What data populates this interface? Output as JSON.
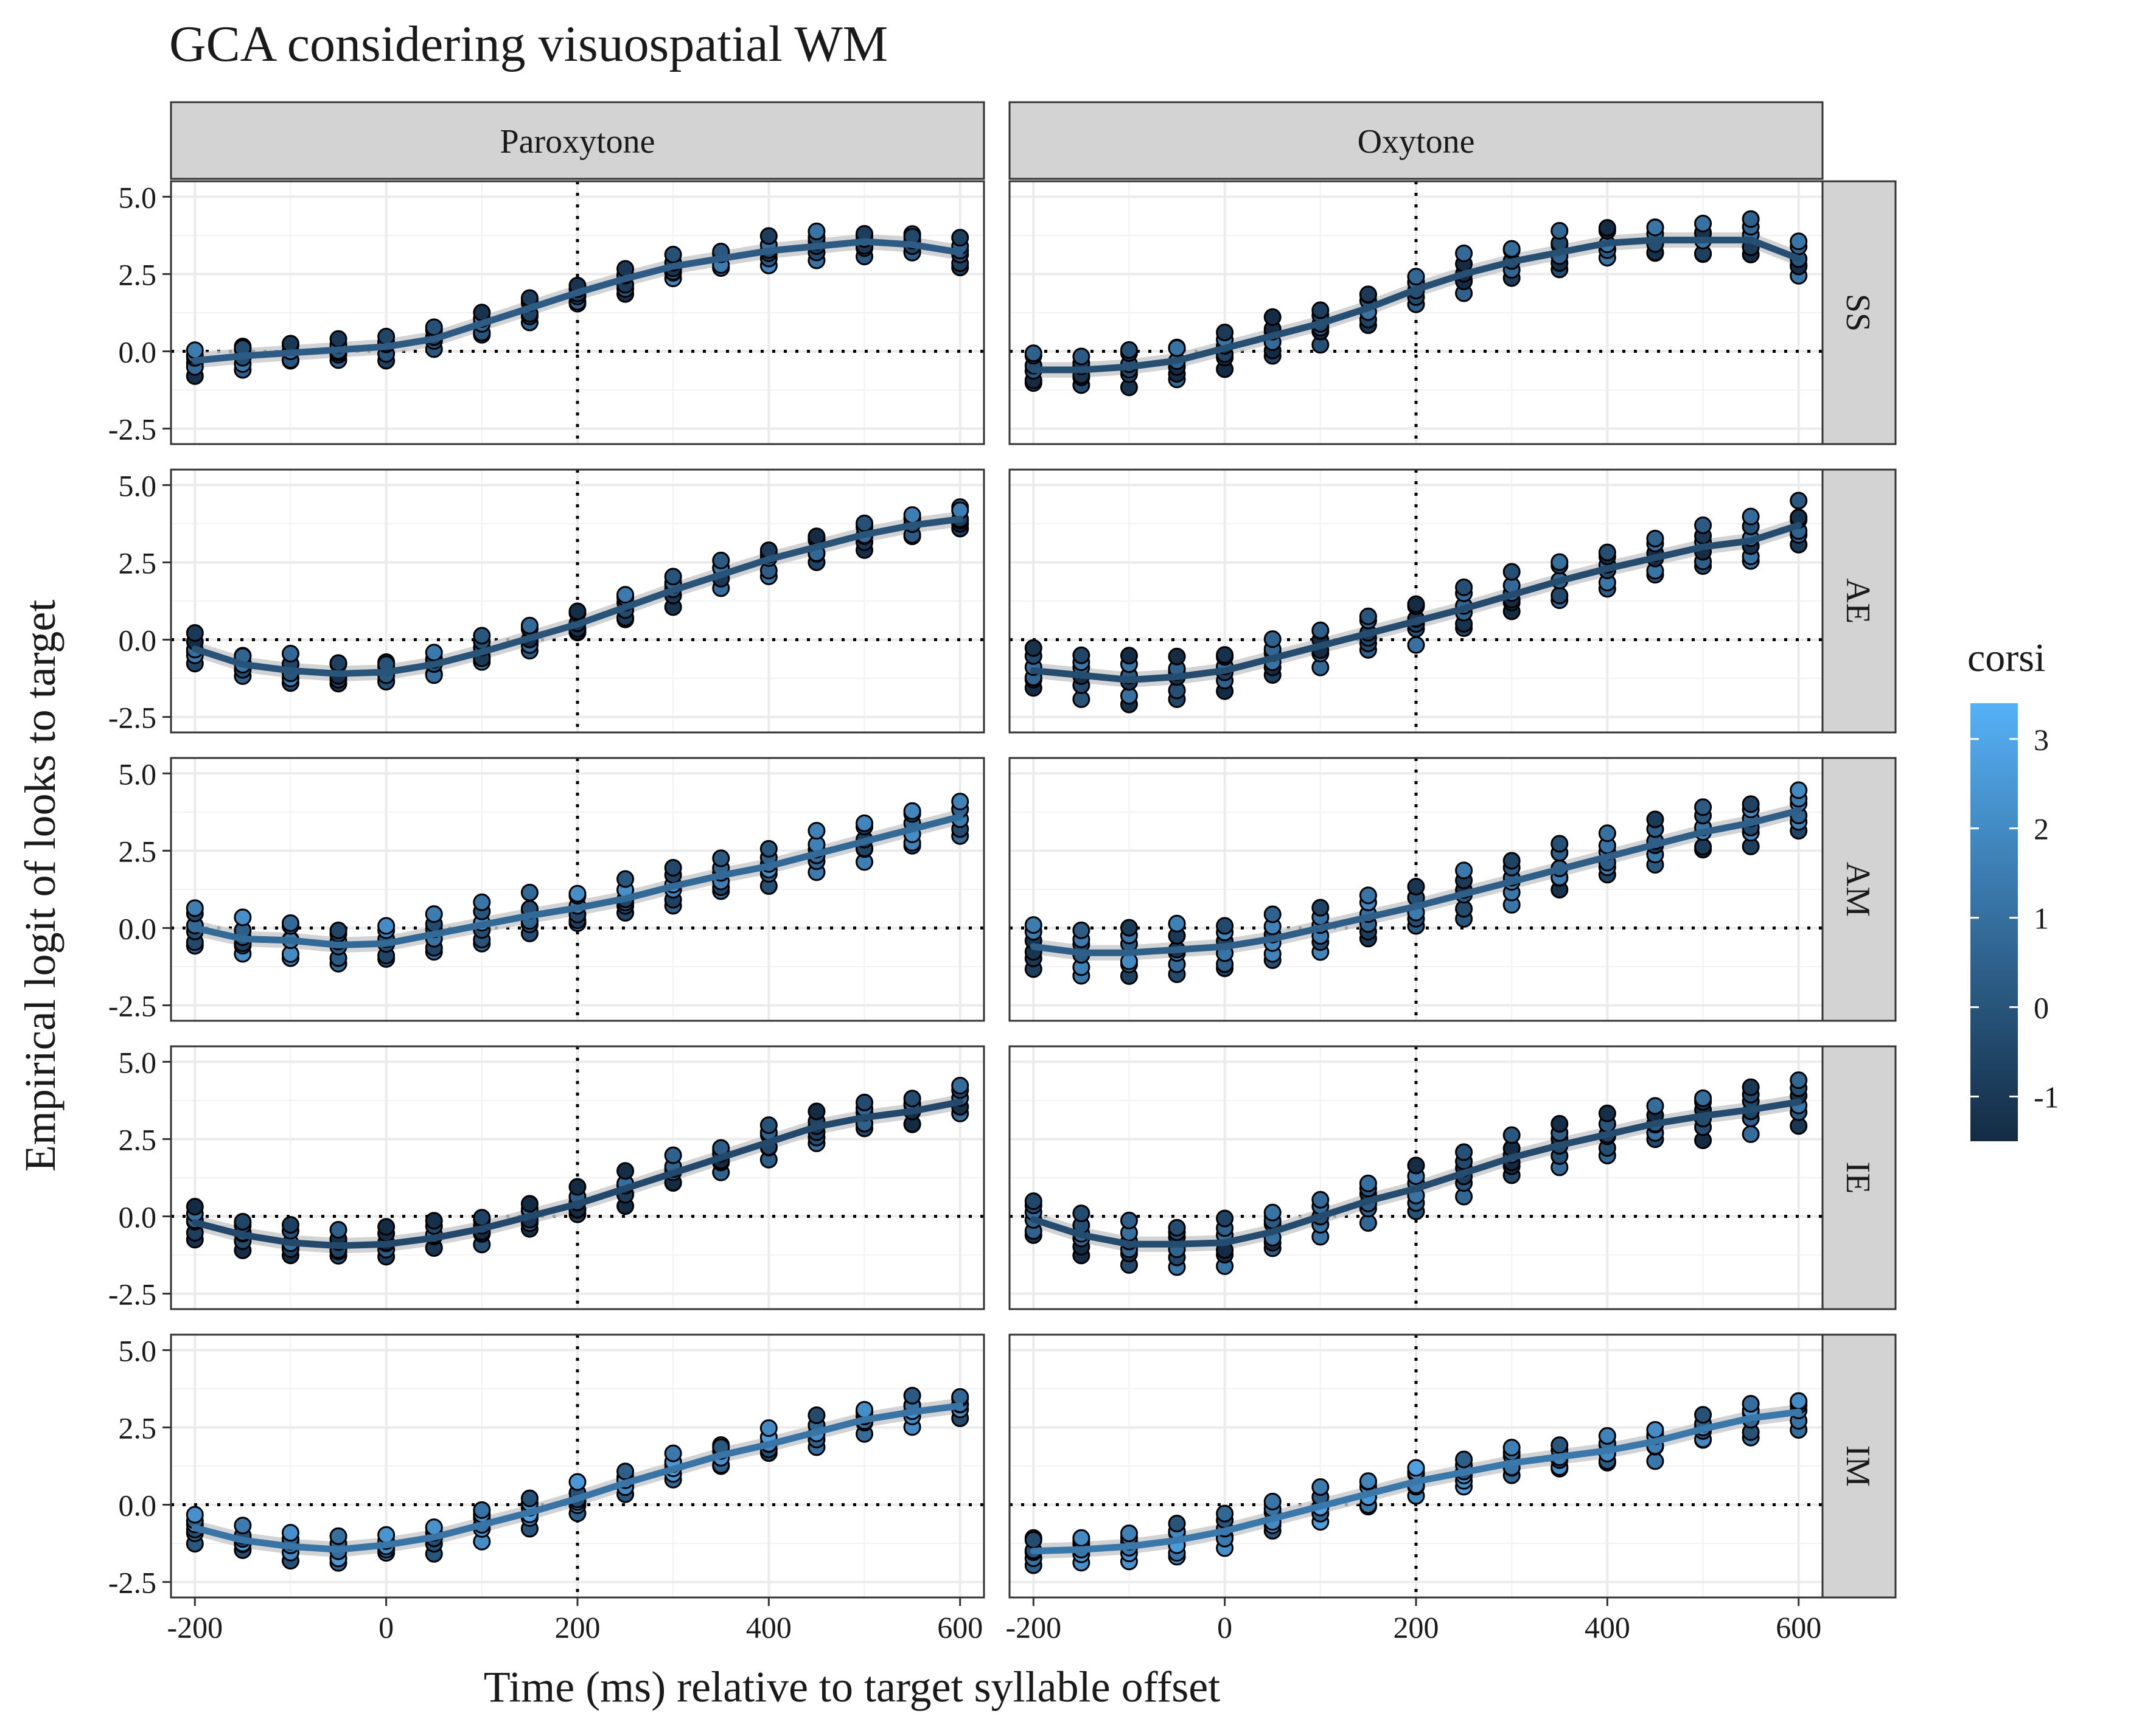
{
  "chart_data": {
    "type": "line",
    "title": "GCA considering visuospatial WM",
    "xlabel": "Time (ms) relative to target syllable offset",
    "ylabel": "Empirical logit of looks to target",
    "xlim": [
      -225,
      625
    ],
    "ylim": [
      -3.0,
      5.5
    ],
    "x_ticks": [
      -200,
      0,
      200,
      400,
      600
    ],
    "x_tick_labels": [
      "-200",
      "0",
      "200",
      "400",
      "600"
    ],
    "y_ticks": [
      -2.5,
      0.0,
      2.5,
      5.0
    ],
    "y_tick_labels": [
      "-2.5",
      "0.0",
      "2.5",
      "5.0"
    ],
    "reference_lines": {
      "x": 200,
      "y": 0
    },
    "grid": true,
    "facet_columns": [
      "Paroxytone",
      "Oxytone"
    ],
    "facet_rows": [
      "SS",
      "AE",
      "AM",
      "IE",
      "IM"
    ],
    "x": [
      -200,
      -150,
      -100,
      -50,
      0,
      50,
      100,
      150,
      200,
      250,
      300,
      350,
      400,
      450,
      500,
      550,
      600
    ],
    "legend": {
      "title": "corsi",
      "position": "right",
      "range": [
        -1.5,
        3.4
      ],
      "ticks": [
        -1,
        0,
        1,
        2,
        3
      ],
      "tick_labels": [
        "-1",
        "0",
        "1",
        "2",
        "3"
      ],
      "color_low": "#132B43",
      "color_high": "#56B1F7"
    },
    "colors": {
      "panel_strip": "#d3d3d3",
      "grid": "#ebebeb",
      "ribbon": "#c8c8c8"
    },
    "panels": {
      "SS": {
        "Paroxytone": {
          "fit": [
            -0.3,
            -0.15,
            -0.05,
            0.05,
            0.15,
            0.4,
            0.9,
            1.4,
            1.9,
            2.35,
            2.75,
            3.0,
            3.25,
            3.4,
            3.55,
            3.45,
            3.2
          ],
          "corsi": 0.3,
          "spread": 0.7
        },
        "Oxytone": {
          "fit": [
            -0.6,
            -0.6,
            -0.5,
            -0.3,
            0.1,
            0.5,
            0.9,
            1.4,
            2.0,
            2.5,
            2.9,
            3.2,
            3.5,
            3.6,
            3.6,
            3.6,
            3.0
          ],
          "corsi": -0.2,
          "spread": 1.1
        }
      },
      "AE": {
        "Paroxytone": {
          "fit": [
            -0.3,
            -0.8,
            -1.0,
            -1.1,
            -1.05,
            -0.8,
            -0.4,
            0.05,
            0.5,
            1.05,
            1.6,
            2.1,
            2.6,
            3.0,
            3.4,
            3.7,
            3.9
          ],
          "corsi": 0.0,
          "spread": 0.8
        },
        "Oxytone": {
          "fit": [
            -1.0,
            -1.15,
            -1.3,
            -1.2,
            -1.0,
            -0.6,
            -0.2,
            0.2,
            0.6,
            1.0,
            1.45,
            1.9,
            2.3,
            2.65,
            3.0,
            3.2,
            3.7
          ],
          "corsi": -0.3,
          "spread": 1.3
        }
      },
      "AM": {
        "Paroxytone": {
          "fit": [
            0.0,
            -0.35,
            -0.4,
            -0.55,
            -0.5,
            -0.2,
            0.1,
            0.4,
            0.65,
            0.95,
            1.35,
            1.7,
            2.0,
            2.4,
            2.8,
            3.2,
            3.6
          ],
          "corsi": 0.8,
          "spread": 1.2
        },
        "Oxytone": {
          "fit": [
            -0.6,
            -0.8,
            -0.8,
            -0.7,
            -0.6,
            -0.35,
            0.0,
            0.35,
            0.7,
            1.1,
            1.5,
            1.9,
            2.3,
            2.7,
            3.1,
            3.4,
            3.8
          ],
          "corsi": 0.4,
          "spread": 1.4
        }
      },
      "IE": {
        "Paroxytone": {
          "fit": [
            -0.2,
            -0.6,
            -0.85,
            -0.95,
            -0.9,
            -0.7,
            -0.4,
            0.0,
            0.4,
            0.9,
            1.4,
            1.9,
            2.4,
            2.9,
            3.2,
            3.4,
            3.7
          ],
          "corsi": -0.4,
          "spread": 0.9
        },
        "Oxytone": {
          "fit": [
            -0.1,
            -0.6,
            -0.9,
            -0.9,
            -0.85,
            -0.5,
            0.0,
            0.5,
            0.9,
            1.4,
            1.9,
            2.3,
            2.65,
            3.0,
            3.25,
            3.45,
            3.7
          ],
          "corsi": -0.3,
          "spread": 1.3
        }
      },
      "IM": {
        "Paroxytone": {
          "fit": [
            -0.75,
            -1.15,
            -1.35,
            -1.45,
            -1.3,
            -1.05,
            -0.65,
            -0.25,
            0.2,
            0.7,
            1.15,
            1.6,
            1.95,
            2.35,
            2.75,
            3.0,
            3.2
          ],
          "corsi": 1.2,
          "spread": 0.8
        },
        "Oxytone": {
          "fit": [
            -1.5,
            -1.45,
            -1.35,
            -1.15,
            -0.85,
            -0.45,
            -0.05,
            0.35,
            0.75,
            1.05,
            1.35,
            1.55,
            1.75,
            2.05,
            2.45,
            2.8,
            3.0
          ],
          "corsi": 1.3,
          "spread": 1.0
        }
      }
    }
  }
}
